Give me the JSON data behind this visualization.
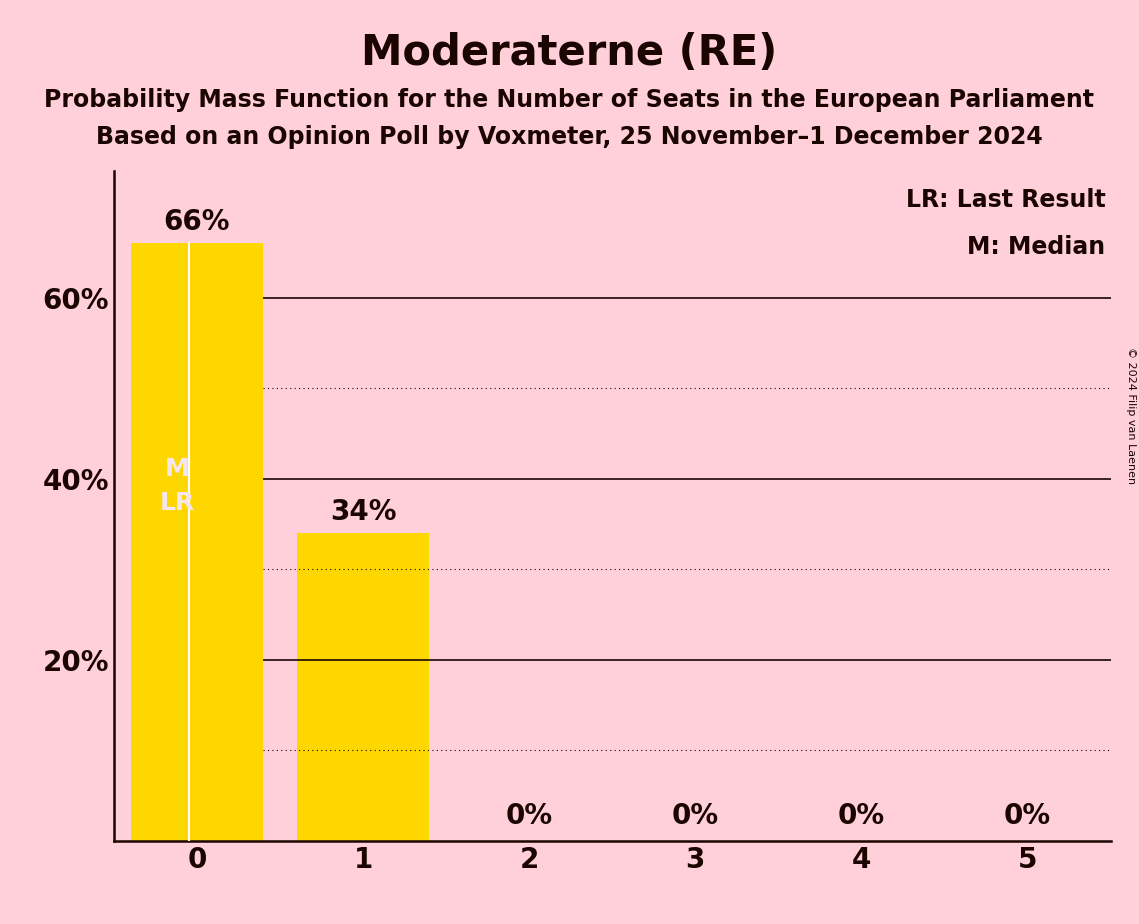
{
  "title": "Moderaterne (RE)",
  "subtitle1": "Probability Mass Function for the Number of Seats in the European Parliament",
  "subtitle2": "Based on an Opinion Poll by Voxmeter, 25 November–1 December 2024",
  "copyright": "© 2024 Filip van Laenen",
  "categories": [
    0,
    1,
    2,
    3,
    4,
    5
  ],
  "values": [
    0.66,
    0.34,
    0.0,
    0.0,
    0.0,
    0.0
  ],
  "bar_color": "#FFD700",
  "background_color": "#FFD0DA",
  "text_color": "#1a0500",
  "ylabel_values": [
    0.2,
    0.4,
    0.6
  ],
  "ylabel_labels": [
    "20%",
    "40%",
    "60%"
  ],
  "ylim": [
    0,
    0.74
  ],
  "median_seat": 0,
  "last_result_seat": 0,
  "legend_lr": "LR: Last Result",
  "legend_m": "M: Median",
  "solid_gridlines": [
    0.2,
    0.4,
    0.6
  ],
  "dotted_gridlines": [
    0.1,
    0.3,
    0.5
  ],
  "bar_labels": [
    "66%",
    "34%",
    "0%",
    "0%",
    "0%",
    "0%"
  ],
  "marker_label_color": "#f5e6ee",
  "title_fontsize": 30,
  "subtitle_fontsize": 17,
  "axis_tick_fontsize": 20,
  "bar_label_fontsize": 20,
  "marker_fontsize": 18,
  "legend_fontsize": 17,
  "copyright_fontsize": 8
}
